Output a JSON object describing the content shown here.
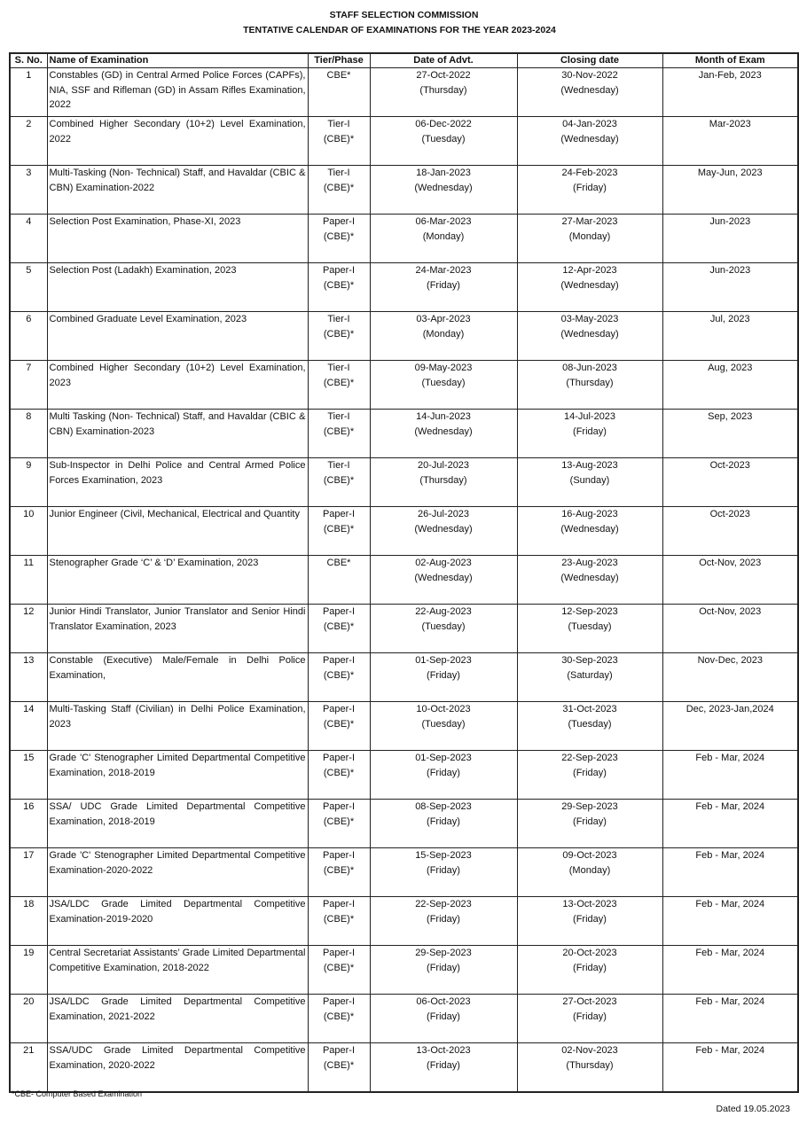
{
  "header": {
    "title": "STAFF SELECTION COMMISSION",
    "subtitle": "TENTATIVE  CALENDAR OF EXAMINATIONS FOR THE YEAR 2023-2024"
  },
  "table": {
    "columns": [
      "S. No.",
      "Name of Examination",
      "Tier/Phase",
      "Date of Advt.",
      "Closing date",
      "Month of Exam"
    ],
    "rows": [
      {
        "sno": "1",
        "name": "Constables (GD) in Central Armed Police Forces (CAPFs), NIA, SSF and Rifleman (GD) in Assam Rifles Examination, 2022",
        "tier": "CBE*",
        "advt": "27-Oct-2022",
        "advt_day": "(Thursday)",
        "close": "30-Nov-2022",
        "close_day": "(Wednesday)",
        "month": "Jan-Feb, 2023"
      },
      {
        "sno": "2",
        "name": "Combined Higher Secondary (10+2) Level Examination, 2022",
        "tier": "Tier-I (CBE)*",
        "advt": "06-Dec-2022",
        "advt_day": "(Tuesday)",
        "close": "04-Jan-2023",
        "close_day": "(Wednesday)",
        "month": "Mar-2023"
      },
      {
        "sno": "3",
        "name": "Multi-Tasking (Non- Technical) Staff, and Havaldar (CBIC & CBN) Examination-2022",
        "tier": "Tier-I (CBE)*",
        "advt": "18-Jan-2023",
        "advt_day": "(Wednesday)",
        "close": "24-Feb-2023",
        "close_day": "(Friday)",
        "month": "May-Jun, 2023"
      },
      {
        "sno": "4",
        "name": "Selection Post Examination, Phase-XI, 2023",
        "tier": "Paper-I (CBE)*",
        "advt": "06-Mar-2023",
        "advt_day": "(Monday)",
        "close": "27-Mar-2023",
        "close_day": "(Monday)",
        "month": "Jun-2023"
      },
      {
        "sno": "5",
        "name": "Selection Post (Ladakh) Examination, 2023",
        "tier": "Paper-I (CBE)*",
        "advt": "24-Mar-2023",
        "advt_day": "(Friday)",
        "close": "12-Apr-2023",
        "close_day": "(Wednesday)",
        "month": "Jun-2023"
      },
      {
        "sno": "6",
        "name": "Combined Graduate Level Examination, 2023",
        "tier": "Tier-I (CBE)*",
        "advt": "03-Apr-2023",
        "advt_day": "(Monday)",
        "close": "03-May-2023",
        "close_day": "(Wednesday)",
        "month": "Jul, 2023"
      },
      {
        "sno": "7",
        "name": "Combined Higher Secondary (10+2) Level Examination, 2023",
        "tier": "Tier-I (CBE)*",
        "advt": "09-May-2023",
        "advt_day": "(Tuesday)",
        "close": "08-Jun-2023",
        "close_day": "(Thursday)",
        "month": "Aug, 2023"
      },
      {
        "sno": "8",
        "name": "Multi Tasking (Non- Technical) Staff, and Havaldar (CBIC & CBN) Examination-2023",
        "tier": "Tier-I (CBE)*",
        "advt": "14-Jun-2023",
        "advt_day": "(Wednesday)",
        "close": "14-Jul-2023",
        "close_day": "(Friday)",
        "month": "Sep, 2023"
      },
      {
        "sno": "9",
        "name": "Sub-Inspector in Delhi Police and Central Armed Police Forces Examination, 2023",
        "tier": "Tier-I (CBE)*",
        "advt": "20-Jul-2023",
        "advt_day": "(Thursday)",
        "close": "13-Aug-2023",
        "close_day": "(Sunday)",
        "month": "Oct-2023"
      },
      {
        "sno": "10",
        "name": "Junior Engineer (Civil, Mechanical, Electrical and Quantity",
        "tier": "Paper-I (CBE)*",
        "advt": "26-Jul-2023",
        "advt_day": "(Wednesday)",
        "close": "16-Aug-2023",
        "close_day": "(Wednesday)",
        "month": "Oct-2023"
      },
      {
        "sno": "11",
        "name": "Stenographer Grade ‘C’ & ‘D’ Examination, 2023",
        "tier": "CBE*",
        "advt": "02-Aug-2023",
        "advt_day": "(Wednesday)",
        "close": "23-Aug-2023",
        "close_day": "(Wednesday)",
        "month": "Oct-Nov, 2023"
      },
      {
        "sno": "12",
        "name": "Junior Hindi Translator, Junior Translator and Senior Hindi Translator Examination, 2023",
        "tier": "Paper-I (CBE)*",
        "advt": "22-Aug-2023",
        "advt_day": "(Tuesday)",
        "close": "12-Sep-2023",
        "close_day": "(Tuesday)",
        "month": "Oct-Nov, 2023"
      },
      {
        "sno": "13",
        "name": "Constable (Executive) Male/Female in Delhi Police Examination,",
        "tier": "Paper-I (CBE)*",
        "advt": "01-Sep-2023",
        "advt_day": "(Friday)",
        "close": "30-Sep-2023",
        "close_day": "(Saturday)",
        "month": "Nov-Dec, 2023"
      },
      {
        "sno": "14",
        "name": "Multi-Tasking Staff (Civilian) in Delhi Police Examination, 2023",
        "tier": "Paper-I (CBE)*",
        "advt": "10-Oct-2023",
        "advt_day": "(Tuesday)",
        "close": "31-Oct-2023",
        "close_day": "(Tuesday)",
        "month": "Dec, 2023-Jan,2024"
      },
      {
        "sno": "15",
        "name": "Grade 'C' Stenographer Limited Departmental Competitive Examination, 2018-2019",
        "tier": "Paper-I (CBE)*",
        "advt": "01-Sep-2023",
        "advt_day": "(Friday)",
        "close": "22-Sep-2023",
        "close_day": "(Friday)",
        "month": "Feb - Mar, 2024"
      },
      {
        "sno": "16",
        "name": "SSA/ UDC Grade Limited Departmental Competitive Examination, 2018-2019",
        "tier": "Paper-I (CBE)*",
        "advt": "08-Sep-2023",
        "advt_day": "(Friday)",
        "close": "29-Sep-2023",
        "close_day": "(Friday)",
        "month": "Feb - Mar, 2024"
      },
      {
        "sno": "17",
        "name": "Grade 'C' Stenographer Limited Departmental Competitive Examination-2020-2022",
        "tier": "Paper-I (CBE)*",
        "advt": "15-Sep-2023",
        "advt_day": "(Friday)",
        "close": "09-Oct-2023",
        "close_day": "(Monday)",
        "month": "Feb - Mar, 2024"
      },
      {
        "sno": "18",
        "name": "JSA/LDC Grade Limited Departmental Competitive Examination-2019-2020",
        "tier": "Paper-I (CBE)*",
        "advt": "22-Sep-2023",
        "advt_day": "(Friday)",
        "close": "13-Oct-2023",
        "close_day": "(Friday)",
        "month": "Feb - Mar, 2024"
      },
      {
        "sno": "19",
        "name": "Central Secretariat Assistants’ Grade Limited Departmental Competitive Examination, 2018-2022",
        "tier": "Paper-I (CBE)*",
        "advt": "29-Sep-2023",
        "advt_day": "(Friday)",
        "close": "20-Oct-2023",
        "close_day": "(Friday)",
        "month": "Feb - Mar, 2024"
      },
      {
        "sno": "20",
        "name": "JSA/LDC Grade Limited Departmental Competitive Examination, 2021-2022",
        "tier": "Paper-I (CBE)*",
        "advt": "06-Oct-2023",
        "advt_day": "(Friday)",
        "close": "27-Oct-2023",
        "close_day": "(Friday)",
        "month": "Feb - Mar, 2024"
      },
      {
        "sno": "21",
        "name": "SSA/UDC Grade Limited Departmental Competitive Examination, 2020-2022",
        "tier": "Paper-I (CBE)*",
        "advt": "13-Oct-2023",
        "advt_day": "(Friday)",
        "close": "02-Nov-2023",
        "close_day": "(Thursday)",
        "month": "Feb - Mar, 2024"
      }
    ]
  },
  "footnote": "*CBE- Computer Based Examination",
  "dated": "Dated  19.05.2023"
}
